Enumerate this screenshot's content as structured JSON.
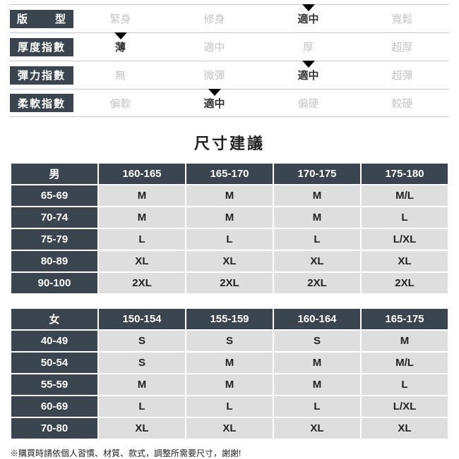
{
  "indicators": [
    {
      "label": "版　　型",
      "spread": true,
      "options": [
        "緊身",
        "修身",
        "適中",
        "寬鬆"
      ],
      "selected": 2
    },
    {
      "label": "厚度指數",
      "spread": false,
      "options": [
        "薄",
        "適中",
        "厚",
        "超厚"
      ],
      "selected": 0
    },
    {
      "label": "彈力指數",
      "spread": false,
      "options": [
        "無",
        "微彈",
        "適中",
        "超彈"
      ],
      "selected": 2
    },
    {
      "label": "柔軟指數",
      "spread": false,
      "options": [
        "偏軟",
        "適中",
        "偏硬",
        "較硬"
      ],
      "selected": 1
    }
  ],
  "section_title": "尺寸建議",
  "tables": [
    {
      "corner": "男",
      "cols": [
        "160-165",
        "165-170",
        "170-175",
        "175-180"
      ],
      "rows": [
        {
          "h": "65-69",
          "v": [
            "M",
            "M",
            "M",
            "M/L"
          ]
        },
        {
          "h": "70-74",
          "v": [
            "M",
            "M",
            "M",
            "L"
          ]
        },
        {
          "h": "75-79",
          "v": [
            "L",
            "L",
            "L",
            "L/XL"
          ]
        },
        {
          "h": "80-89",
          "v": [
            "XL",
            "XL",
            "XL",
            "XL"
          ]
        },
        {
          "h": "90-100",
          "v": [
            "2XL",
            "2XL",
            "2XL",
            "2XL"
          ]
        }
      ]
    },
    {
      "corner": "女",
      "cols": [
        "150-154",
        "155-159",
        "160-164",
        "165-175"
      ],
      "rows": [
        {
          "h": "40-49",
          "v": [
            "S",
            "S",
            "S",
            "M"
          ]
        },
        {
          "h": "50-54",
          "v": [
            "S",
            "M",
            "M",
            "M/L"
          ]
        },
        {
          "h": "55-59",
          "v": [
            "M",
            "M",
            "M",
            "L"
          ]
        },
        {
          "h": "60-69",
          "v": [
            "L",
            "L",
            "L",
            "L/XL"
          ]
        },
        {
          "h": "70-80",
          "v": [
            "XL",
            "XL",
            "XL",
            "XL"
          ]
        }
      ]
    }
  ],
  "note": "※購買時請依個人習慣、材質、款式，調整所需要尺寸，謝謝!",
  "style": {
    "header_bg": "#3a4550",
    "cell_bg": "#dedede",
    "inactive_text": "#c4c4c4",
    "active_text": "#333333",
    "border_color": "#c8c8c8",
    "page_bg": "#ffffff"
  }
}
